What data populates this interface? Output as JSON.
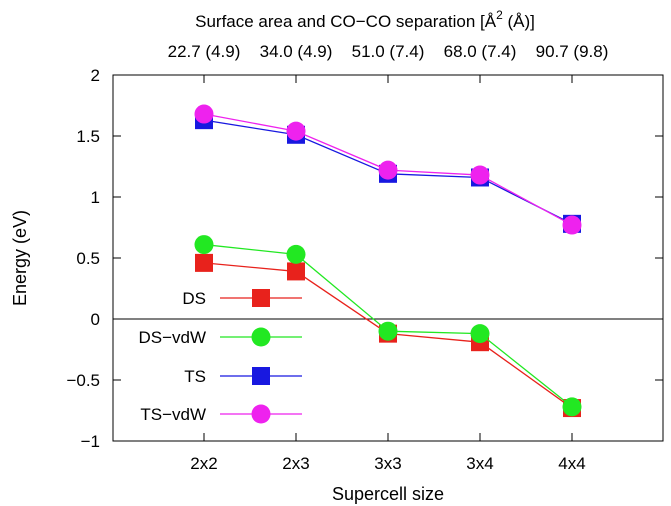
{
  "chart_data": {
    "type": "line",
    "title": "Surface area and CO−CO separation [Å",
    "title_sup": "2",
    "title_end": " (Å)]",
    "xlabel": "Supercell size",
    "ylabel": "Energy (eV)",
    "categories": [
      "2x2",
      "2x3",
      "3x3",
      "3x4",
      "4x4"
    ],
    "top_axis_labels": [
      "22.7 (4.9)",
      "34.0 (4.9)",
      "51.0 (7.4)",
      "68.0 (7.4)",
      "90.7 (9.8)"
    ],
    "ylim": [
      -1,
      2
    ],
    "yticks": [
      -1,
      -0.5,
      0,
      0.5,
      1,
      1.5,
      2
    ],
    "ytick_labels": [
      "−1",
      "−0.5",
      "0",
      "0.5",
      "1",
      "1.5",
      "2"
    ],
    "zero_line": true,
    "grid": false,
    "legend_position": "lower-left",
    "series": [
      {
        "name": "DS",
        "color": "#e8221c",
        "marker": "square",
        "values": [
          0.46,
          0.39,
          -0.12,
          -0.19,
          -0.73
        ]
      },
      {
        "name": "DS−vdW",
        "color": "#22e822",
        "marker": "circle",
        "values": [
          0.61,
          0.53,
          -0.1,
          -0.12,
          -0.72
        ]
      },
      {
        "name": "TS",
        "color": "#1818e0",
        "marker": "square",
        "values": [
          1.63,
          1.51,
          1.19,
          1.16,
          0.78
        ]
      },
      {
        "name": "TS−vdW",
        "color": "#ee22ee",
        "marker": "circle",
        "values": [
          1.68,
          1.54,
          1.22,
          1.18,
          0.77
        ]
      }
    ]
  }
}
